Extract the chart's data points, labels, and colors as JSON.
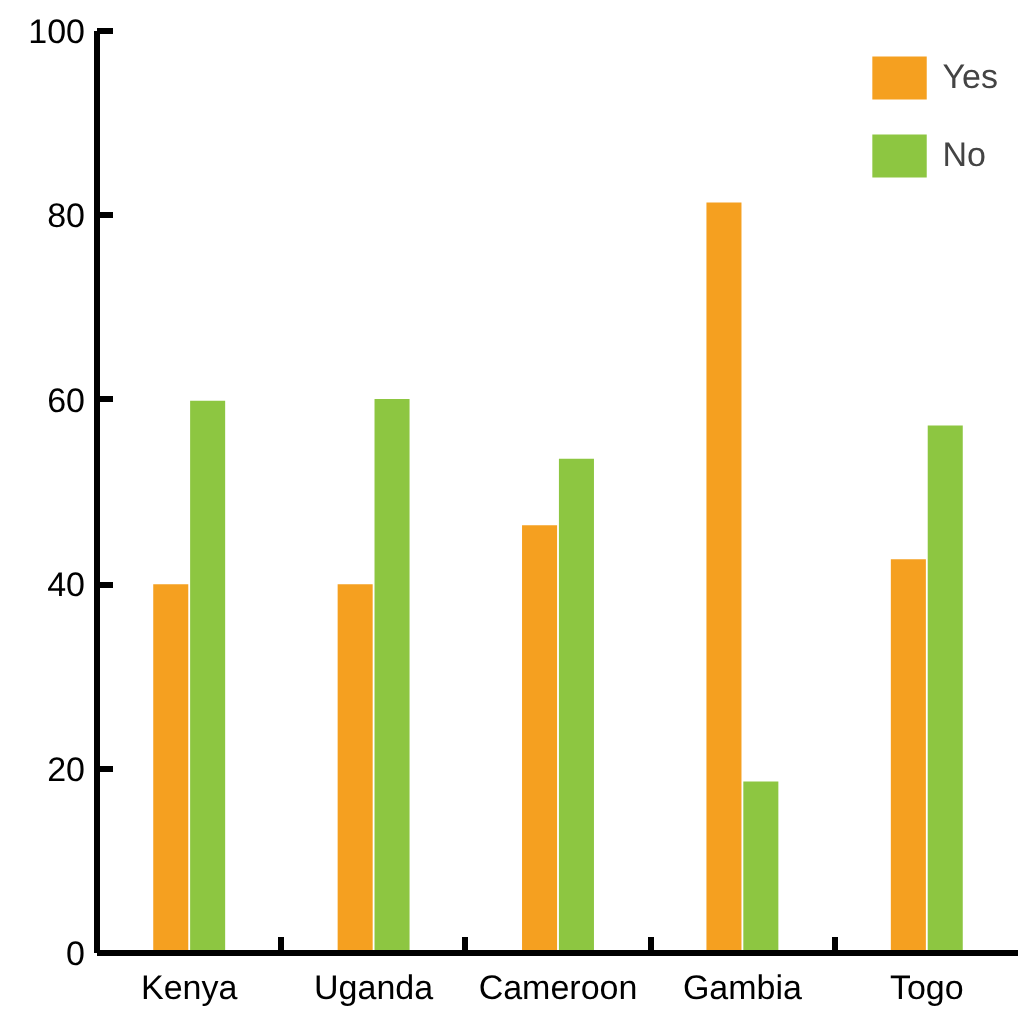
{
  "chart_data": {
    "type": "bar",
    "categories": [
      "Kenya",
      "Uganda",
      "Cameroon",
      "Gambia",
      "Togo"
    ],
    "series": [
      {
        "name": "Yes",
        "color": "#f5a020",
        "values": [
          40,
          40,
          46.4,
          81.4,
          42.7
        ]
      },
      {
        "name": "No",
        "color": "#8dc641",
        "values": [
          59.9,
          60.1,
          53.6,
          18.6,
          57.2
        ]
      }
    ],
    "ylim": [
      0,
      100
    ],
    "yticks": [
      0,
      20,
      40,
      60,
      80,
      100
    ],
    "grid": false,
    "legend": "top right"
  }
}
